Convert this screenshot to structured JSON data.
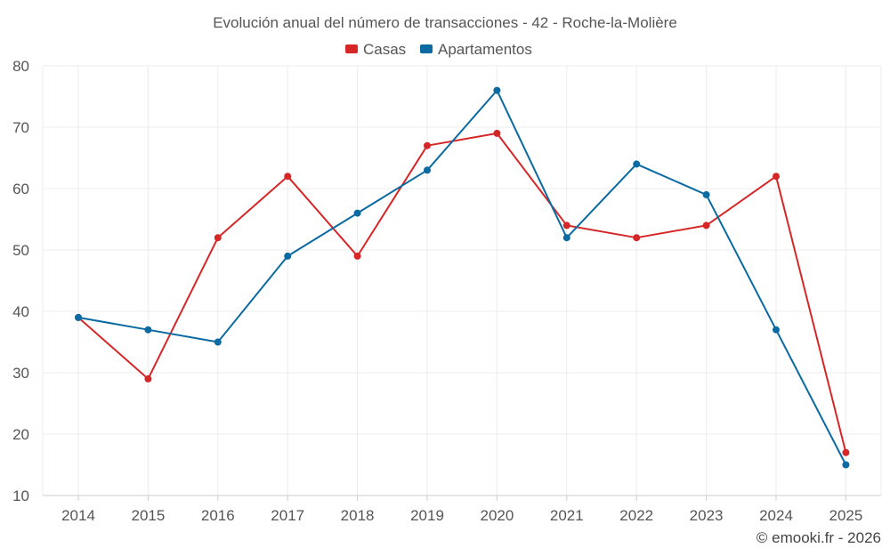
{
  "chart_data": {
    "type": "line",
    "title": "Evolución anual del número de transacciones - 42 - Roche-la-Molière",
    "categories": [
      "2014",
      "2015",
      "2016",
      "2017",
      "2018",
      "2019",
      "2020",
      "2021",
      "2022",
      "2023",
      "2024",
      "2025"
    ],
    "ylim": [
      10,
      80
    ],
    "yticks": [
      10,
      20,
      30,
      40,
      50,
      60,
      70,
      80
    ],
    "grid": true,
    "legend_position": "top-center",
    "series": [
      {
        "name": "Casas",
        "color": "#d62728",
        "values": [
          39,
          29,
          52,
          62,
          49,
          67,
          69,
          54,
          52,
          54,
          62,
          17
        ]
      },
      {
        "name": "Apartamentos",
        "color": "#0a6aa1",
        "values": [
          39,
          37,
          35,
          49,
          56,
          63,
          76,
          52,
          64,
          59,
          37,
          15
        ]
      }
    ],
    "credit": "© emooki.fr - 2026"
  }
}
